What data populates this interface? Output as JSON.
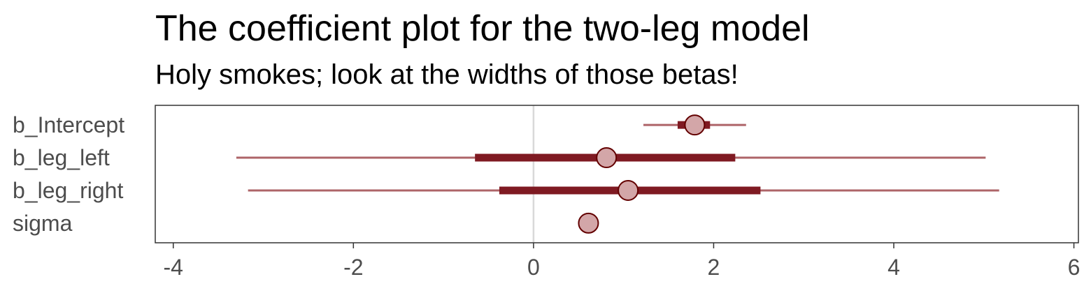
{
  "chart_data": {
    "type": "coefficient-interval",
    "title": "The coefficient plot for the two-leg model",
    "subtitle": "Holy smokes; look at the widths of those betas!",
    "xlabel": "",
    "ylabel": "",
    "xlim": [
      -4.2,
      6.05
    ],
    "x_ticks": [
      -4,
      -2,
      0,
      2,
      4,
      6
    ],
    "x_tick_labels": [
      "-4",
      "-2",
      "0",
      "2",
      "4",
      "6"
    ],
    "reference_line": 0,
    "grid": false,
    "categories": [
      "b_Intercept",
      "b_leg_left",
      "b_leg_right",
      "sigma"
    ],
    "series": [
      {
        "values": [
          1.79,
          0.81,
          1.05,
          0.61
        ],
        "inner_low": [
          1.6,
          -0.65,
          -0.38,
          0.57
        ],
        "inner_high": [
          1.96,
          2.24,
          2.52,
          0.65
        ],
        "outer_low": [
          1.22,
          -3.3,
          -3.17,
          0.53
        ],
        "outer_high": [
          2.36,
          5.02,
          5.17,
          0.69
        ]
      }
    ],
    "colors": {
      "thick_interval": "#7f1a22",
      "thin_interval": "#ae6468",
      "point_fill": "#d3a6a8",
      "point_stroke": "#630000",
      "zero_line": "#d9d9d9",
      "panel_border": "#333333",
      "axis_text": "#4d4d4d"
    }
  }
}
